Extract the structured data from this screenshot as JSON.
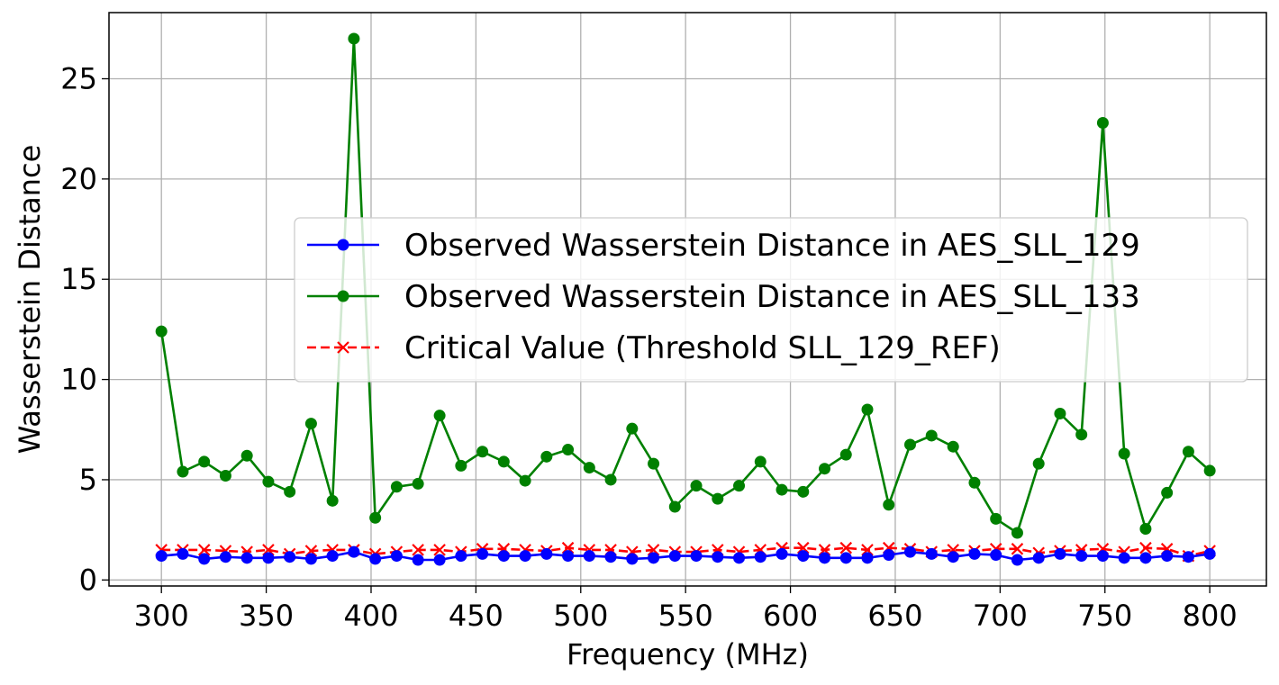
{
  "chart_data": {
    "type": "line",
    "title": "",
    "xlabel": "Frequency (MHz)",
    "ylabel": "Wasserstein Distance",
    "xlim": [
      275,
      827
    ],
    "ylim": [
      -0.3,
      28.3
    ],
    "xticks": [
      300,
      350,
      400,
      450,
      500,
      550,
      600,
      650,
      700,
      750,
      800
    ],
    "yticks": [
      0,
      5,
      10,
      15,
      20,
      25
    ],
    "grid": true,
    "legend_position": "center-right",
    "x": [
      300.0,
      310.2,
      320.4,
      330.6,
      340.8,
      351.0,
      361.2,
      371.4,
      381.6,
      391.8,
      402.0,
      412.2,
      422.4,
      432.7,
      442.9,
      453.1,
      463.3,
      473.5,
      483.7,
      493.9,
      504.1,
      514.3,
      524.5,
      534.7,
      544.9,
      555.1,
      565.3,
      575.5,
      585.7,
      595.9,
      606.1,
      616.3,
      626.5,
      636.7,
      646.9,
      657.1,
      667.3,
      677.6,
      687.8,
      698.0,
      708.2,
      718.4,
      728.6,
      738.8,
      749.0,
      759.2,
      769.4,
      779.6,
      789.8,
      800.0
    ],
    "series": [
      {
        "name": "Observed Wasserstein Distance in AES_SLL_129",
        "color": "#0000ff",
        "style": "solid",
        "marker": "circle",
        "values": [
          1.2,
          1.3,
          1.05,
          1.15,
          1.1,
          1.1,
          1.15,
          1.05,
          1.2,
          1.4,
          1.05,
          1.2,
          1.0,
          1.0,
          1.2,
          1.3,
          1.2,
          1.2,
          1.3,
          1.2,
          1.2,
          1.15,
          1.05,
          1.1,
          1.2,
          1.2,
          1.15,
          1.1,
          1.15,
          1.3,
          1.2,
          1.1,
          1.1,
          1.1,
          1.25,
          1.4,
          1.3,
          1.15,
          1.3,
          1.25,
          1.0,
          1.1,
          1.3,
          1.2,
          1.2,
          1.1,
          1.1,
          1.2,
          1.15,
          1.3
        ]
      },
      {
        "name": "Observed Wasserstein Distance in AES_SLL_133",
        "color": "#008000",
        "style": "solid",
        "marker": "circle",
        "values": [
          12.4,
          5.4,
          5.9,
          5.2,
          6.2,
          4.9,
          4.4,
          7.8,
          3.95,
          27.0,
          3.1,
          4.65,
          4.8,
          8.2,
          5.7,
          6.4,
          5.9,
          4.95,
          6.15,
          6.5,
          5.6,
          5.0,
          7.55,
          5.8,
          3.65,
          4.7,
          4.05,
          4.7,
          5.9,
          4.5,
          4.4,
          5.55,
          6.25,
          8.5,
          3.75,
          6.75,
          7.2,
          6.65,
          4.85,
          3.05,
          2.35,
          5.8,
          8.3,
          7.25,
          22.8,
          6.3,
          2.55,
          4.35,
          6.4,
          5.45
        ]
      },
      {
        "name": "Critical Value (Threshold SLL_129_REF)",
        "color": "#ff0000",
        "style": "dashed",
        "marker": "x",
        "values": [
          1.5,
          1.5,
          1.5,
          1.45,
          1.4,
          1.5,
          1.3,
          1.45,
          1.5,
          1.5,
          1.3,
          1.4,
          1.5,
          1.5,
          1.4,
          1.55,
          1.55,
          1.5,
          1.45,
          1.6,
          1.5,
          1.5,
          1.4,
          1.5,
          1.4,
          1.4,
          1.5,
          1.4,
          1.5,
          1.6,
          1.6,
          1.5,
          1.6,
          1.5,
          1.6,
          1.55,
          1.4,
          1.5,
          1.45,
          1.55,
          1.55,
          1.35,
          1.45,
          1.5,
          1.55,
          1.4,
          1.6,
          1.55,
          1.2,
          1.45
        ]
      }
    ]
  }
}
